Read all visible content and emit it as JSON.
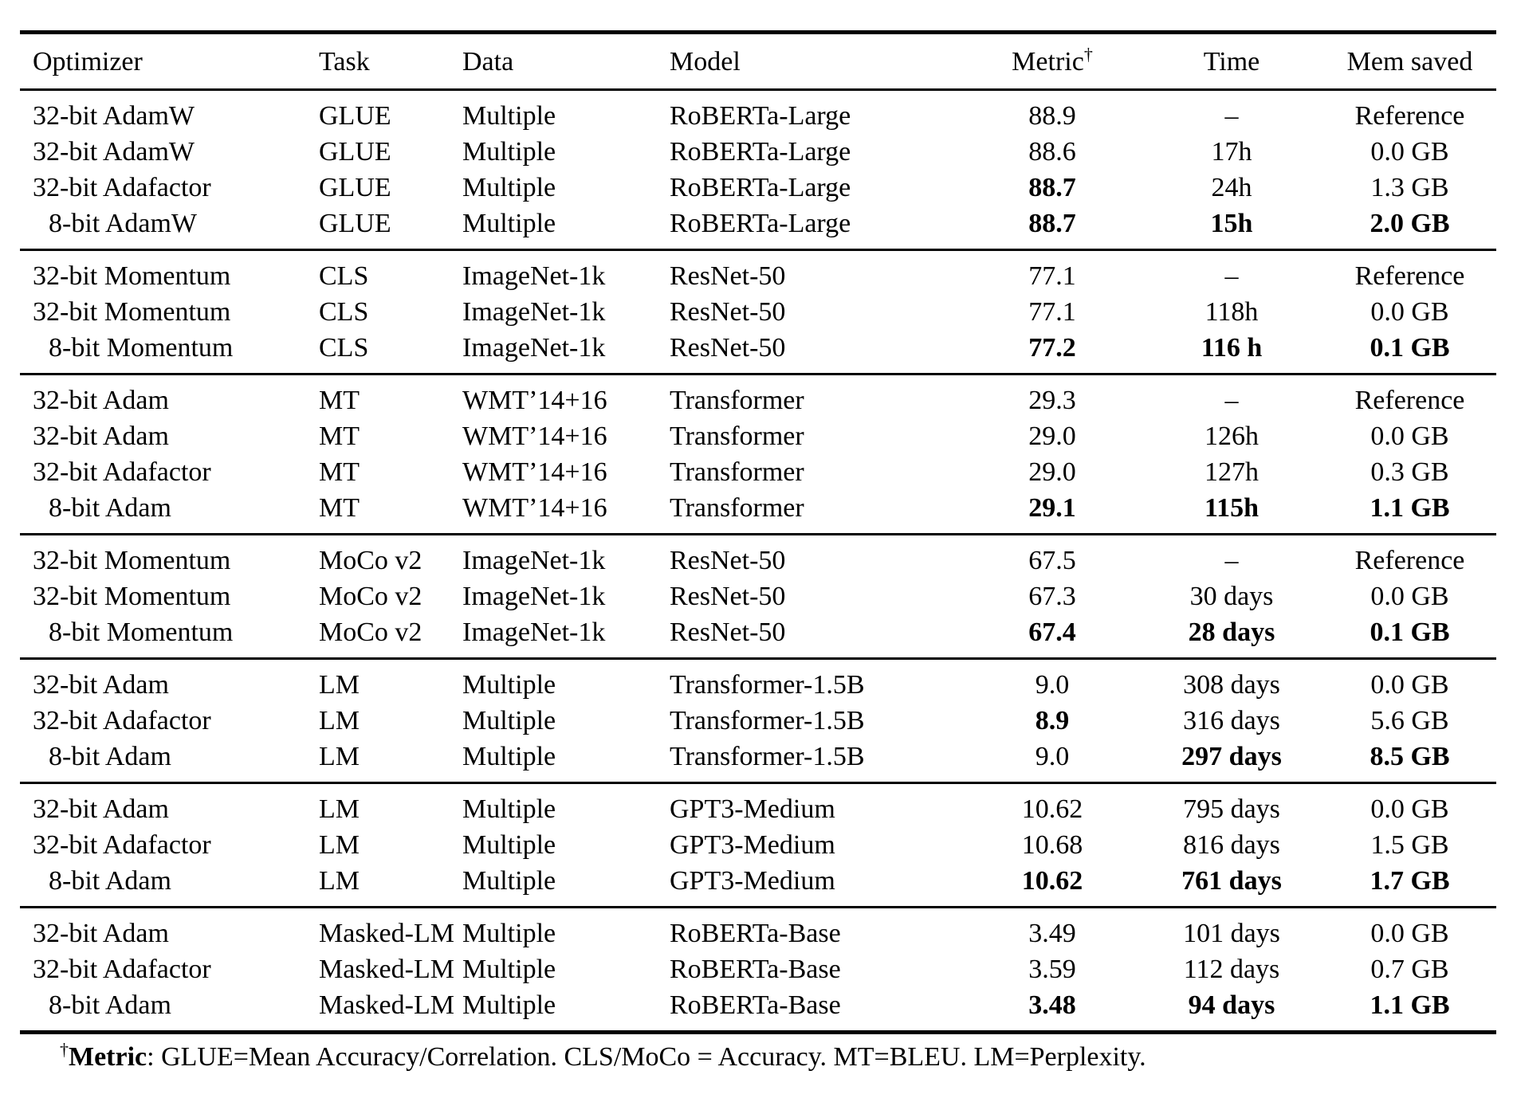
{
  "colors": {
    "text": "#000000",
    "background": "#ffffff",
    "rule": "#000000"
  },
  "table": {
    "columns": [
      {
        "key": "optimizer",
        "label": "Optimizer",
        "align": "left"
      },
      {
        "key": "task",
        "label": "Task",
        "align": "left"
      },
      {
        "key": "data",
        "label": "Data",
        "align": "left"
      },
      {
        "key": "model",
        "label": "Model",
        "align": "left"
      },
      {
        "key": "metric",
        "label": "Metric",
        "sup": "†",
        "align": "center"
      },
      {
        "key": "time",
        "label": "Time",
        "align": "center"
      },
      {
        "key": "mem_saved",
        "label": "Mem saved",
        "align": "center"
      }
    ],
    "groups": [
      {
        "rows": [
          {
            "cells": [
              "32-bit AdamW",
              "GLUE",
              "Multiple",
              "RoBERTa-Large",
              "88.9",
              "–",
              "Reference"
            ],
            "bold": []
          },
          {
            "cells": [
              "32-bit AdamW",
              "GLUE",
              "Multiple",
              "RoBERTa-Large",
              "88.6",
              "17h",
              "0.0 GB"
            ],
            "bold": []
          },
          {
            "cells": [
              "32-bit Adafactor",
              "GLUE",
              "Multiple",
              "RoBERTa-Large",
              "88.7",
              "24h",
              "1.3 GB"
            ],
            "bold": [
              4
            ]
          },
          {
            "cells": [
              "8-bit AdamW",
              "GLUE",
              "Multiple",
              "RoBERTa-Large",
              "88.7",
              "15h",
              "2.0 GB"
            ],
            "bold": [
              4,
              5,
              6
            ]
          }
        ]
      },
      {
        "rows": [
          {
            "cells": [
              "32-bit Momentum",
              "CLS",
              "ImageNet-1k",
              "ResNet-50",
              "77.1",
              "–",
              "Reference"
            ],
            "bold": []
          },
          {
            "cells": [
              "32-bit Momentum",
              "CLS",
              "ImageNet-1k",
              "ResNet-50",
              "77.1",
              "118h",
              "0.0 GB"
            ],
            "bold": []
          },
          {
            "cells": [
              "8-bit Momentum",
              "CLS",
              "ImageNet-1k",
              "ResNet-50",
              "77.2",
              "116 h",
              "0.1 GB"
            ],
            "bold": [
              4,
              5,
              6
            ]
          }
        ]
      },
      {
        "rows": [
          {
            "cells": [
              "32-bit Adam",
              "MT",
              "WMT’14+16",
              "Transformer",
              "29.3",
              "–",
              "Reference"
            ],
            "bold": []
          },
          {
            "cells": [
              "32-bit Adam",
              "MT",
              "WMT’14+16",
              "Transformer",
              "29.0",
              "126h",
              "0.0 GB"
            ],
            "bold": []
          },
          {
            "cells": [
              "32-bit Adafactor",
              "MT",
              "WMT’14+16",
              "Transformer",
              "29.0",
              "127h",
              "0.3 GB"
            ],
            "bold": []
          },
          {
            "cells": [
              "8-bit Adam",
              "MT",
              "WMT’14+16",
              "Transformer",
              "29.1",
              "115h",
              "1.1 GB"
            ],
            "bold": [
              4,
              5,
              6
            ]
          }
        ]
      },
      {
        "rows": [
          {
            "cells": [
              "32-bit Momentum",
              "MoCo v2",
              "ImageNet-1k",
              "ResNet-50",
              "67.5",
              "–",
              "Reference"
            ],
            "bold": []
          },
          {
            "cells": [
              "32-bit Momentum",
              "MoCo v2",
              "ImageNet-1k",
              "ResNet-50",
              "67.3",
              "30 days",
              "0.0 GB"
            ],
            "bold": []
          },
          {
            "cells": [
              "8-bit Momentum",
              "MoCo v2",
              "ImageNet-1k",
              "ResNet-50",
              "67.4",
              "28 days",
              "0.1 GB"
            ],
            "bold": [
              4,
              5,
              6
            ]
          }
        ]
      },
      {
        "rows": [
          {
            "cells": [
              "32-bit Adam",
              "LM",
              "Multiple",
              "Transformer-1.5B",
              "9.0",
              "308 days",
              "0.0 GB"
            ],
            "bold": []
          },
          {
            "cells": [
              "32-bit Adafactor",
              "LM",
              "Multiple",
              "Transformer-1.5B",
              "8.9",
              "316 days",
              "5.6 GB"
            ],
            "bold": [
              4
            ]
          },
          {
            "cells": [
              "8-bit Adam",
              "LM",
              "Multiple",
              "Transformer-1.5B",
              "9.0",
              "297 days",
              "8.5 GB"
            ],
            "bold": [
              5,
              6
            ]
          }
        ]
      },
      {
        "rows": [
          {
            "cells": [
              "32-bit Adam",
              "LM",
              "Multiple",
              "GPT3-Medium",
              "10.62",
              "795 days",
              "0.0 GB"
            ],
            "bold": []
          },
          {
            "cells": [
              "32-bit Adafactor",
              "LM",
              "Multiple",
              "GPT3-Medium",
              "10.68",
              "816 days",
              "1.5 GB"
            ],
            "bold": []
          },
          {
            "cells": [
              "8-bit Adam",
              "LM",
              "Multiple",
              "GPT3-Medium",
              "10.62",
              "761 days",
              "1.7 GB"
            ],
            "bold": [
              4,
              5,
              6
            ]
          }
        ]
      },
      {
        "rows": [
          {
            "cells": [
              "32-bit Adam",
              "Masked-LM",
              "Multiple",
              "RoBERTa-Base",
              "3.49",
              "101 days",
              "0.0 GB"
            ],
            "bold": []
          },
          {
            "cells": [
              "32-bit Adafactor",
              "Masked-LM",
              "Multiple",
              "RoBERTa-Base",
              "3.59",
              "112 days",
              "0.7 GB"
            ],
            "bold": []
          },
          {
            "cells": [
              "8-bit Adam",
              "Masked-LM",
              "Multiple",
              "RoBERTa-Base",
              "3.48",
              "94 days",
              "1.1 GB"
            ],
            "bold": [
              4,
              5,
              6
            ]
          }
        ]
      }
    ]
  },
  "footnote": {
    "dagger": "†",
    "label": "Metric",
    "text": ": GLUE=Mean Accuracy/Correlation. CLS/MoCo = Accuracy. MT=BLEU. LM=Perplexity."
  }
}
